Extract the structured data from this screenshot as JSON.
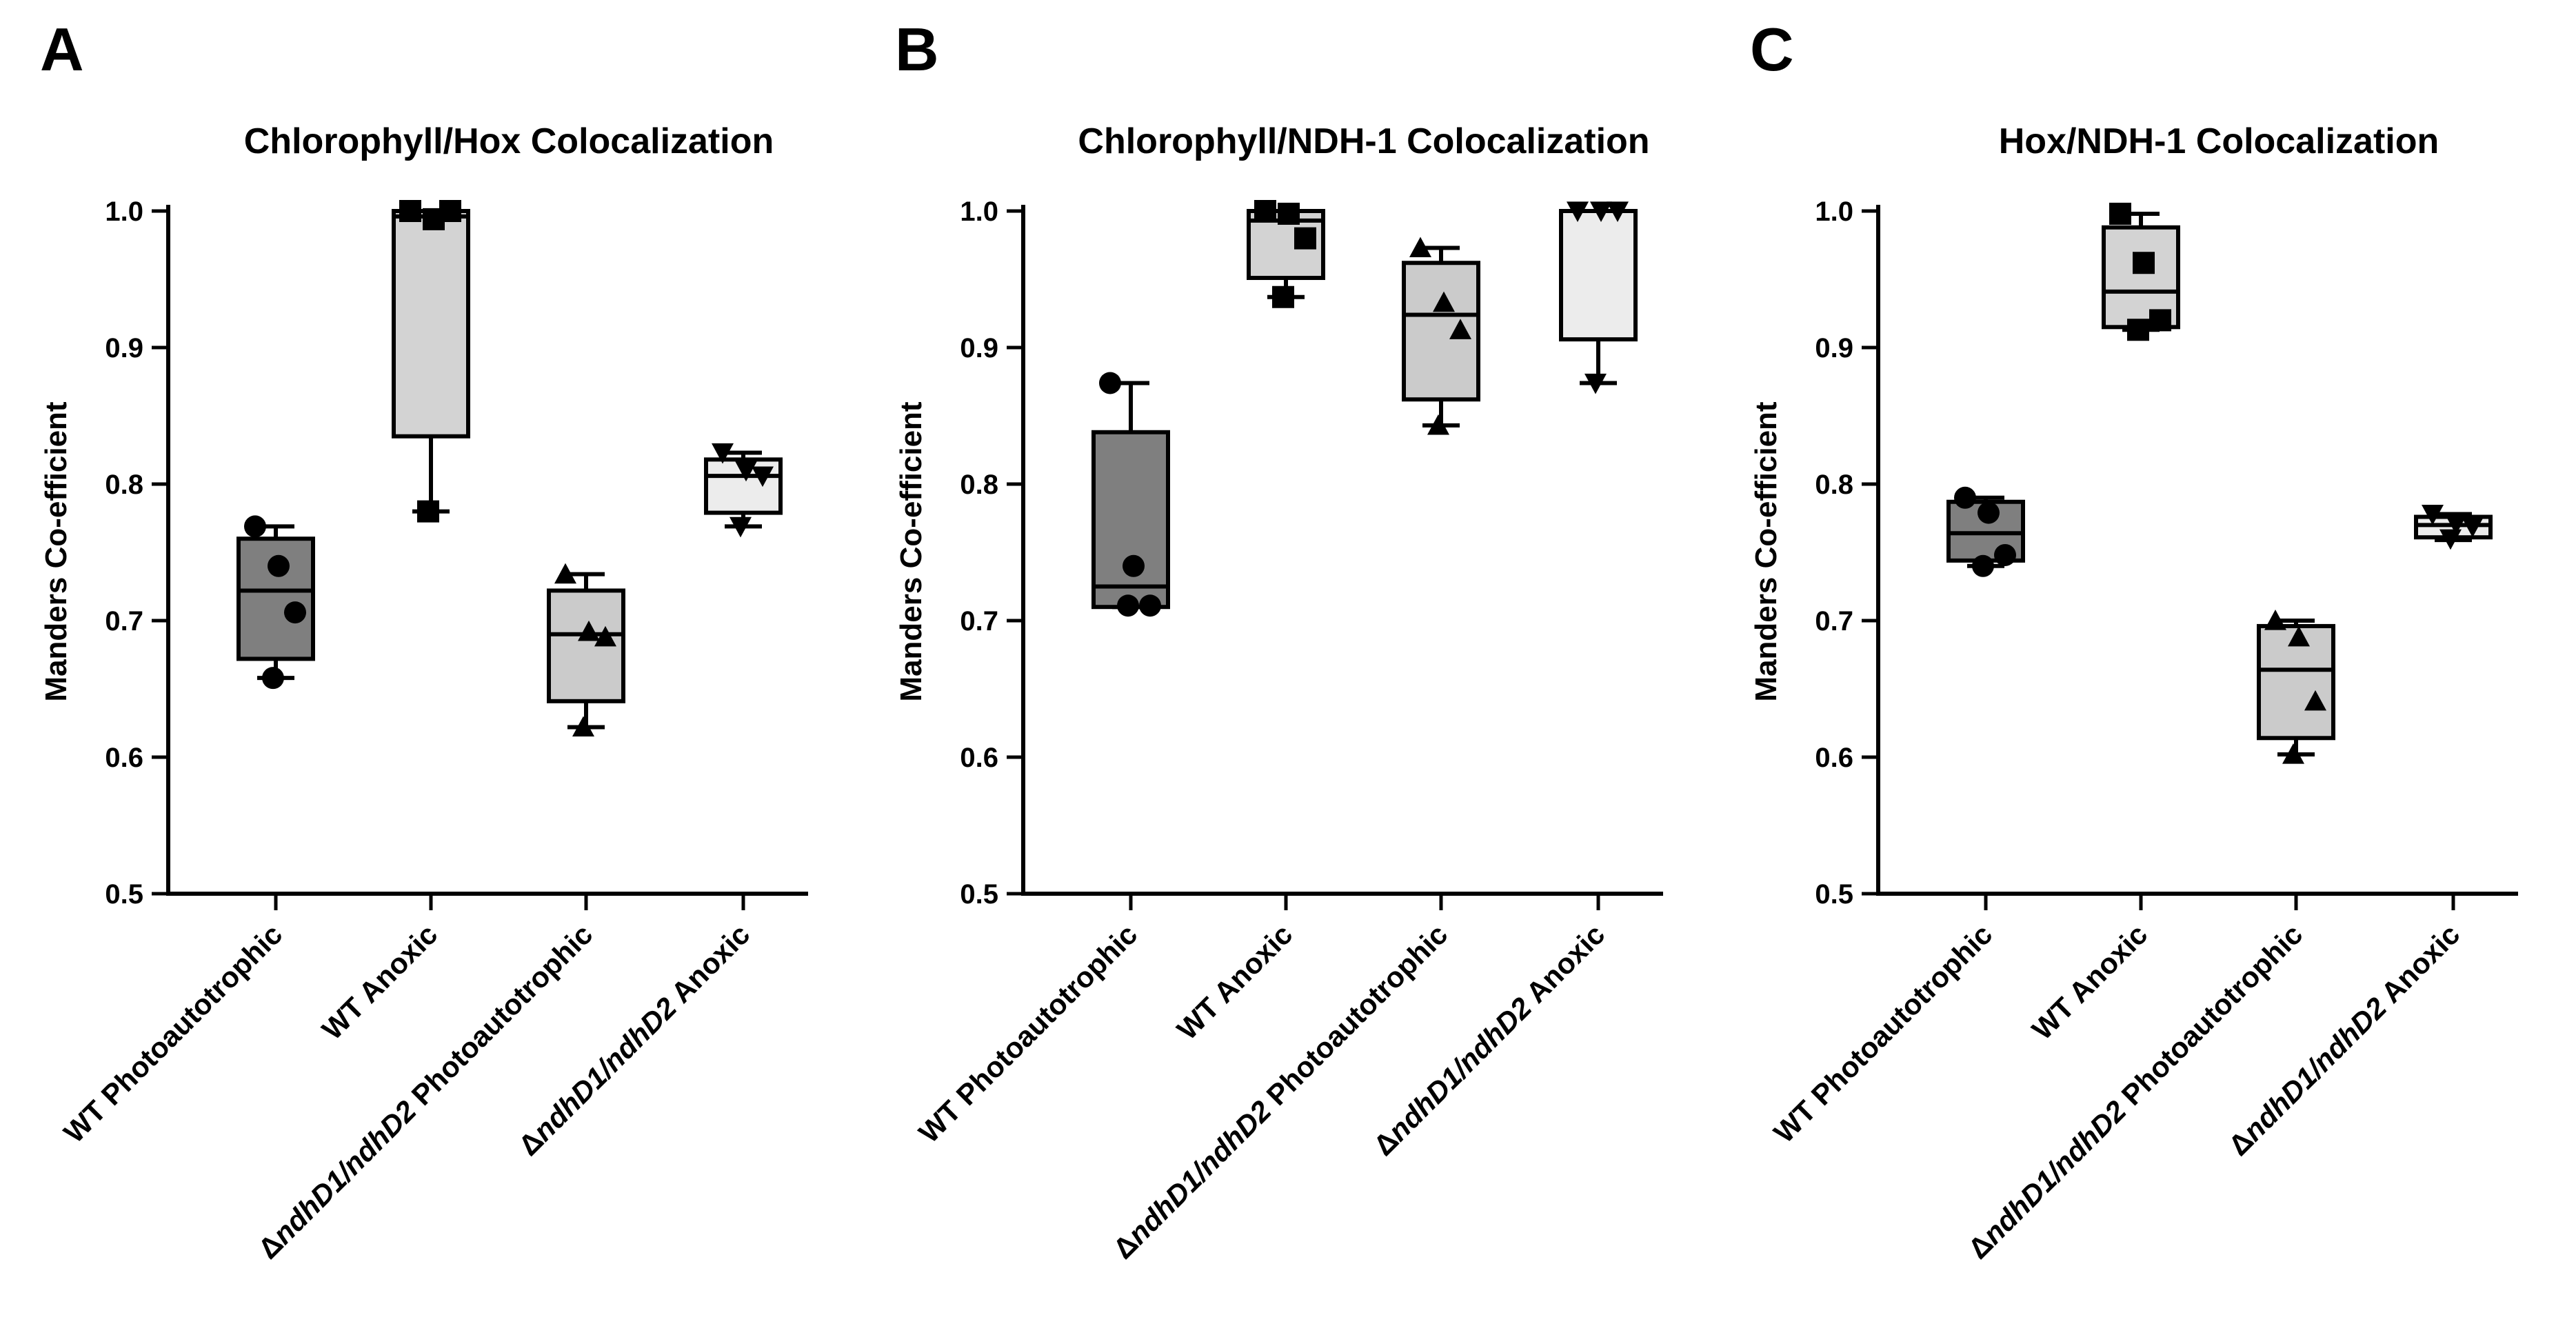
{
  "chart_data": [
    {
      "type": "box",
      "panel_label": "A",
      "title": "Chlorophyll/Hox Colocalization",
      "xlabel": "",
      "ylabel": "Manders Co-efficient",
      "ylim": [
        0.5,
        1.0
      ],
      "yticks": [
        "0.5",
        "0.6",
        "0.7",
        "0.8",
        "0.9",
        "1.0"
      ],
      "categories": [
        {
          "prefix": "",
          "italic": "",
          "suffix": "WT Photoautotrophic"
        },
        {
          "prefix": "",
          "italic": "",
          "suffix": "WT Anoxic"
        },
        {
          "prefix": "Δ",
          "italic": "ndhD1/ndhD2",
          "suffix": " Photoautotrophic"
        },
        {
          "prefix": "Δ",
          "italic": "ndhD1/ndhD2",
          "suffix": " Anoxic"
        }
      ],
      "series": [
        {
          "name": "WT Photoautotrophic",
          "marker": "circle",
          "fill": "#7f7f7f",
          "min": 0.658,
          "q1": 0.672,
          "median": 0.722,
          "q3": 0.76,
          "max": 0.769,
          "points": [
            0.769,
            0.74,
            0.706,
            0.658
          ]
        },
        {
          "name": "WT Anoxic",
          "marker": "square",
          "fill": "#d3d3d3",
          "min": 0.78,
          "q1": 0.835,
          "median": 0.996,
          "q3": 1.0,
          "max": 1.0,
          "points": [
            1.0,
            0.994,
            1.0,
            0.78
          ]
        },
        {
          "name": "ΔndhD1/ndhD2 Photoautotrophic",
          "marker": "triangle-up",
          "fill": "#cbcbcb",
          "min": 0.622,
          "q1": 0.641,
          "median": 0.69,
          "q3": 0.722,
          "max": 0.734,
          "points": [
            0.734,
            0.692,
            0.688,
            0.622
          ]
        },
        {
          "name": "ΔndhD1/ndhD2 Anoxic",
          "marker": "triangle-down",
          "fill": "#ececec",
          "min": 0.769,
          "q1": 0.779,
          "median": 0.806,
          "q3": 0.818,
          "max": 0.823,
          "points": [
            0.823,
            0.81,
            0.806,
            0.769
          ]
        }
      ]
    },
    {
      "type": "box",
      "panel_label": "B",
      "title": "Chlorophyll/NDH-1 Colocalization",
      "xlabel": "",
      "ylabel": "Manders Co-efficient",
      "ylim": [
        0.5,
        1.0
      ],
      "yticks": [
        "0.5",
        "0.6",
        "0.7",
        "0.8",
        "0.9",
        "1.0"
      ],
      "categories": [
        {
          "prefix": "",
          "italic": "",
          "suffix": "WT Photoautotrophic"
        },
        {
          "prefix": "",
          "italic": "",
          "suffix": "WT Anoxic"
        },
        {
          "prefix": "Δ",
          "italic": "ndhD1/ndhD2",
          "suffix": " Photoautotrophic"
        },
        {
          "prefix": "Δ",
          "italic": "ndhD1/ndhD2",
          "suffix": " Anoxic"
        }
      ],
      "series": [
        {
          "name": "WT Photoautotrophic",
          "marker": "circle",
          "fill": "#7f7f7f",
          "min": 0.71,
          "q1": 0.71,
          "median": 0.725,
          "q3": 0.838,
          "max": 0.874,
          "points": [
            0.874,
            0.74,
            0.711,
            0.711
          ]
        },
        {
          "name": "WT Anoxic",
          "marker": "square",
          "fill": "#d3d3d3",
          "min": 0.937,
          "q1": 0.951,
          "median": 0.993,
          "q3": 1.0,
          "max": 1.0,
          "points": [
            1.0,
            0.998,
            0.98,
            0.937
          ]
        },
        {
          "name": "ΔndhD1/ndhD2 Photoautotrophic",
          "marker": "triangle-up",
          "fill": "#cbcbcb",
          "min": 0.843,
          "q1": 0.862,
          "median": 0.924,
          "q3": 0.962,
          "max": 0.973,
          "points": [
            0.973,
            0.933,
            0.913,
            0.843
          ]
        },
        {
          "name": "ΔndhD1/ndhD2 Anoxic",
          "marker": "triangle-down",
          "fill": "#ececec",
          "min": 0.874,
          "q1": 0.906,
          "median": 1.0,
          "q3": 1.0,
          "max": 1.0,
          "points": [
            1.0,
            1.0,
            1.0,
            0.874
          ]
        }
      ]
    },
    {
      "type": "box",
      "panel_label": "C",
      "title": "Hox/NDH-1 Colocalization",
      "xlabel": "",
      "ylabel": "Manders Co-efficient",
      "ylim": [
        0.5,
        1.0
      ],
      "yticks": [
        "0.5",
        "0.6",
        "0.7",
        "0.8",
        "0.9",
        "1.0"
      ],
      "categories": [
        {
          "prefix": "",
          "italic": "",
          "suffix": "WT Photoautotrophic"
        },
        {
          "prefix": "",
          "italic": "",
          "suffix": "WT Anoxic"
        },
        {
          "prefix": "Δ",
          "italic": "ndhD1/ndhD2",
          "suffix": " Photoautotrophic"
        },
        {
          "prefix": "Δ",
          "italic": "ndhD1/ndhD2",
          "suffix": " Anoxic"
        }
      ],
      "series": [
        {
          "name": "WT Photoautotrophic",
          "marker": "circle",
          "fill": "#7f7f7f",
          "min": 0.74,
          "q1": 0.744,
          "median": 0.764,
          "q3": 0.787,
          "max": 0.79,
          "points": [
            0.79,
            0.779,
            0.748,
            0.74
          ]
        },
        {
          "name": "WT Anoxic",
          "marker": "square",
          "fill": "#d3d3d3",
          "min": 0.913,
          "q1": 0.915,
          "median": 0.941,
          "q3": 0.988,
          "max": 0.998,
          "points": [
            0.998,
            0.962,
            0.92,
            0.913
          ]
        },
        {
          "name": "ΔndhD1/ndhD2 Photoautotrophic",
          "marker": "triangle-up",
          "fill": "#cbcbcb",
          "min": 0.602,
          "q1": 0.614,
          "median": 0.664,
          "q3": 0.696,
          "max": 0.7,
          "points": [
            0.7,
            0.688,
            0.641,
            0.602
          ]
        },
        {
          "name": "ΔndhD1/ndhD2 Anoxic",
          "marker": "triangle-down",
          "fill": "#ececec",
          "min": 0.759,
          "q1": 0.761,
          "median": 0.77,
          "q3": 0.776,
          "max": 0.778,
          "points": [
            0.778,
            0.771,
            0.769,
            0.76
          ]
        }
      ]
    }
  ]
}
